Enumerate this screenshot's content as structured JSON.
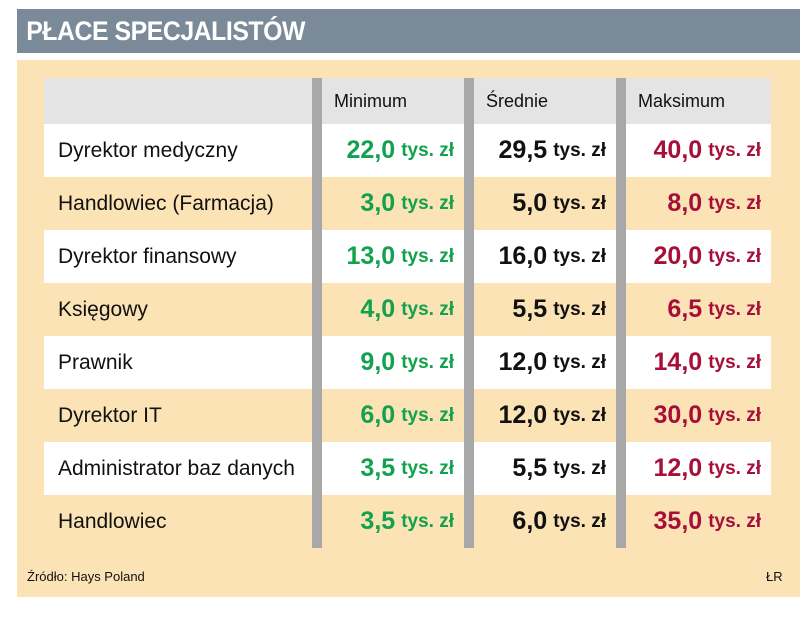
{
  "title": "PŁACE SPECJALISTÓW",
  "chart_data": {
    "type": "table",
    "columns": [
      "",
      "Minimum",
      "Średnie",
      "Maksimum"
    ],
    "unit": "tys. zł",
    "rows": [
      {
        "name": "Dyrektor medyczny",
        "min": "22,0",
        "avg": "29,5",
        "max": "40,0"
      },
      {
        "name": "Handlowiec (Farmacja)",
        "min": "3,0",
        "avg": "5,0",
        "max": "8,0"
      },
      {
        "name": "Dyrektor finansowy",
        "min": "13,0",
        "avg": "16,0",
        "max": "20,0"
      },
      {
        "name": "Księgowy",
        "min": "4,0",
        "avg": "5,5",
        "max": "6,5"
      },
      {
        "name": "Prawnik",
        "min": "9,0",
        "avg": "12,0",
        "max": "14,0"
      },
      {
        "name": "Dyrektor IT",
        "min": "6,0",
        "avg": "12,0",
        "max": "30,0"
      },
      {
        "name": "Administrator baz danych",
        "min": "3,5",
        "avg": "5,5",
        "max": "12,0"
      },
      {
        "name": "Handlowiec",
        "min": "3,5",
        "avg": "6,0",
        "max": "35,0"
      }
    ]
  },
  "source": "Źródło: Hays Poland",
  "credit": "ŁR",
  "colors": {
    "header_bar": "#7b8a99",
    "panel": "#fbe3b5",
    "minimum": "#12a14e",
    "average": "#111111",
    "maximum": "#a50f3a"
  }
}
